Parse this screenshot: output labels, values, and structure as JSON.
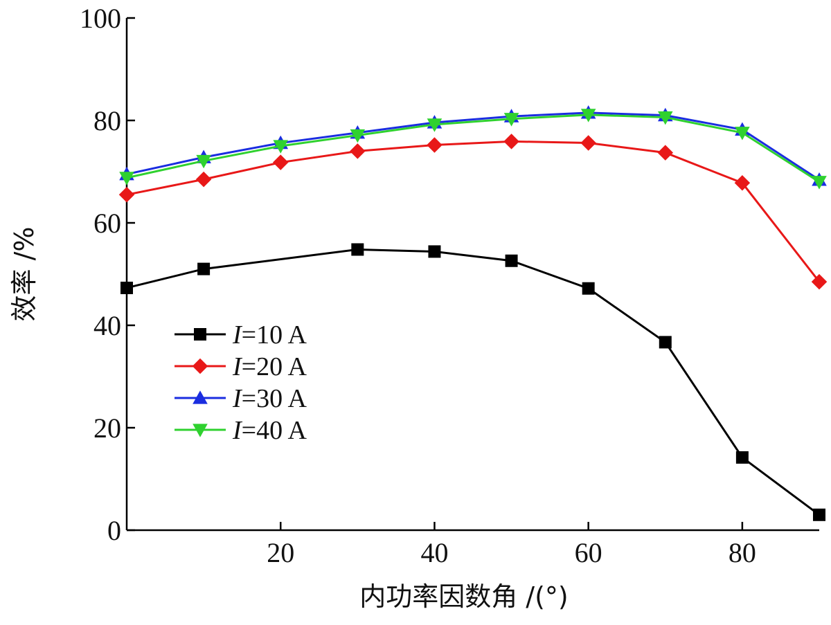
{
  "chart_data": {
    "type": "line",
    "title": "",
    "xlabel": "内功率因数角 /(°)",
    "ylabel": "效率 /%",
    "xlim": [
      0,
      90
    ],
    "ylim": [
      0,
      100
    ],
    "xticks": [
      20,
      40,
      60,
      80
    ],
    "yticks": [
      0,
      20,
      40,
      60,
      80,
      100
    ],
    "x": [
      0,
      10,
      30,
      40,
      50,
      60,
      70,
      80,
      90
    ],
    "legend_position": "center-left",
    "series": [
      {
        "name": "I=10 A",
        "label_prefix": "I",
        "label_suffix": "=10 A",
        "color": "#000000",
        "marker": "square",
        "x": [
          0,
          10,
          30,
          40,
          50,
          60,
          70,
          80,
          90
        ],
        "values": [
          47.3,
          51.0,
          54.8,
          54.4,
          52.6,
          47.2,
          36.7,
          14.2,
          3.0
        ]
      },
      {
        "name": "I=20 A",
        "label_prefix": "I",
        "label_suffix": "=20 A",
        "color": "#e81818",
        "marker": "diamond",
        "x": [
          0,
          10,
          20,
          30,
          40,
          50,
          60,
          70,
          80,
          90
        ],
        "values": [
          65.5,
          68.5,
          71.8,
          74.0,
          75.2,
          75.9,
          75.6,
          73.7,
          67.8,
          48.5
        ]
      },
      {
        "name": "I=30 A",
        "label_prefix": "I",
        "label_suffix": "=30 A",
        "color": "#1a2de0",
        "marker": "triangle-up",
        "x": [
          0,
          10,
          20,
          30,
          40,
          50,
          60,
          70,
          80,
          90
        ],
        "values": [
          69.5,
          72.8,
          75.6,
          77.6,
          79.6,
          80.8,
          81.5,
          81.0,
          78.2,
          68.4
        ]
      },
      {
        "name": "I=40 A",
        "label_prefix": "I",
        "label_suffix": "=40 A",
        "color": "#2fd12f",
        "marker": "triangle-down",
        "x": [
          0,
          10,
          20,
          30,
          40,
          50,
          60,
          70,
          80,
          90
        ],
        "values": [
          68.8,
          72.1,
          75.0,
          77.1,
          79.2,
          80.3,
          81.1,
          80.6,
          77.6,
          68.0
        ]
      }
    ]
  }
}
